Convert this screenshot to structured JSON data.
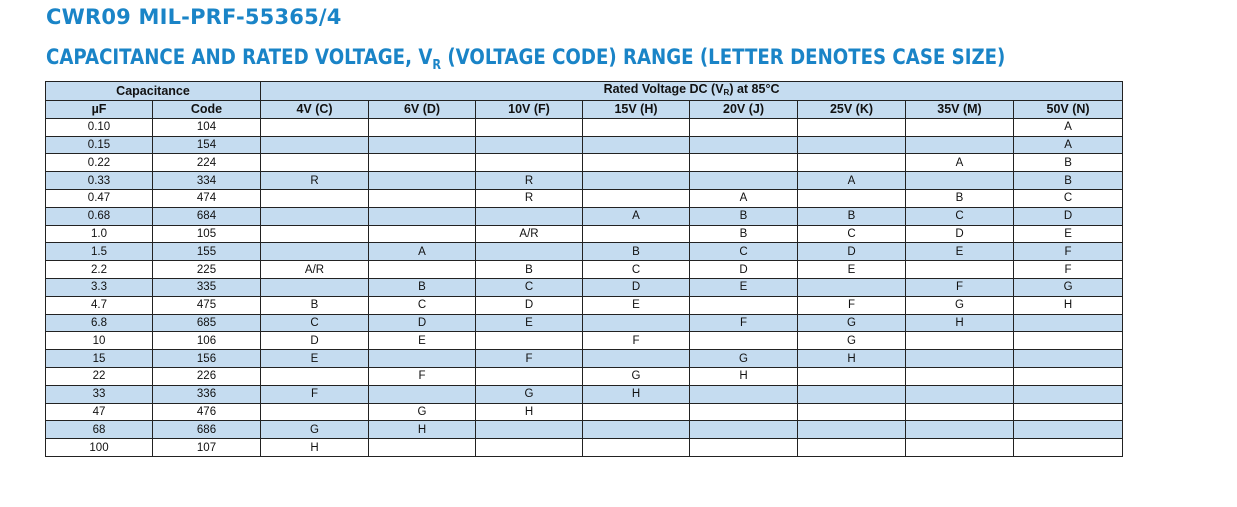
{
  "title": "CWR09 MIL-PRF-55365/4",
  "subtitle": {
    "before": "CAPACITANCE AND RATED VOLTAGE, V",
    "sub": "R",
    "after": " (VOLTAGE CODE) RANGE (LETTER DENOTES CASE SIZE)"
  },
  "table": {
    "group_capacitance": "Capacitance",
    "group_voltage": {
      "before": "Rated Voltage DC (V",
      "sub": "R",
      "after": ") at 85°C"
    },
    "col_uf": "µF",
    "col_code": "Code",
    "voltages": [
      "4V (C)",
      "6V (D)",
      "10V (F)",
      "15V (H)",
      "20V (J)",
      "25V (K)",
      "35V (M)",
      "50V (N)"
    ],
    "rows": [
      {
        "uf": "0.10",
        "code": "104",
        "cells": [
          "",
          "",
          "",
          "",
          "",
          "",
          "",
          "A"
        ]
      },
      {
        "uf": "0.15",
        "code": "154",
        "cells": [
          "",
          "",
          "",
          "",
          "",
          "",
          "",
          "A"
        ]
      },
      {
        "uf": "0.22",
        "code": "224",
        "cells": [
          "",
          "",
          "",
          "",
          "",
          "",
          "A",
          "B"
        ]
      },
      {
        "uf": "0.33",
        "code": "334",
        "cells": [
          "R",
          "",
          "R",
          "",
          "",
          "A",
          "",
          "B"
        ]
      },
      {
        "uf": "0.47",
        "code": "474",
        "cells": [
          "",
          "",
          "R",
          "",
          "A",
          "",
          "B",
          "C"
        ]
      },
      {
        "uf": "0.68",
        "code": "684",
        "cells": [
          "",
          "",
          "",
          "A",
          "B",
          "B",
          "C",
          "D"
        ]
      },
      {
        "uf": "1.0",
        "code": "105",
        "cells": [
          "",
          "",
          "A/R",
          "",
          "B",
          "C",
          "D",
          "E"
        ]
      },
      {
        "uf": "1.5",
        "code": "155",
        "cells": [
          "",
          "A",
          "",
          "B",
          "C",
          "D",
          "E",
          "F"
        ]
      },
      {
        "uf": "2.2",
        "code": "225",
        "cells": [
          "A/R",
          "",
          "B",
          "C",
          "D",
          "E",
          "",
          "F"
        ]
      },
      {
        "uf": "3.3",
        "code": "335",
        "cells": [
          "",
          "B",
          "C",
          "D",
          "E",
          "",
          "F",
          "G"
        ]
      },
      {
        "uf": "4.7",
        "code": "475",
        "cells": [
          "B",
          "C",
          "D",
          "E",
          "",
          "F",
          "G",
          "H"
        ]
      },
      {
        "uf": "6.8",
        "code": "685",
        "cells": [
          "C",
          "D",
          "E",
          "",
          "F",
          "G",
          "H",
          ""
        ]
      },
      {
        "uf": "10",
        "code": "106",
        "cells": [
          "D",
          "E",
          "",
          "F",
          "",
          "G",
          "",
          ""
        ]
      },
      {
        "uf": "15",
        "code": "156",
        "cells": [
          "E",
          "",
          "F",
          "",
          "G",
          "H",
          "",
          ""
        ]
      },
      {
        "uf": "22",
        "code": "226",
        "cells": [
          "",
          "F",
          "",
          "G",
          "H",
          "",
          "",
          ""
        ]
      },
      {
        "uf": "33",
        "code": "336",
        "cells": [
          "F",
          "",
          "G",
          "H",
          "",
          "",
          "",
          ""
        ]
      },
      {
        "uf": "47",
        "code": "476",
        "cells": [
          "",
          "G",
          "H",
          "",
          "",
          "",
          "",
          ""
        ]
      },
      {
        "uf": "68",
        "code": "686",
        "cells": [
          "G",
          "H",
          "",
          "",
          "",
          "",
          "",
          ""
        ]
      },
      {
        "uf": "100",
        "code": "107",
        "cells": [
          "H",
          "",
          "",
          "",
          "",
          "",
          "",
          ""
        ]
      }
    ]
  },
  "colors": {
    "title": "#1a84c7",
    "row_shade": "#c5dcf0",
    "border": "#222222"
  }
}
